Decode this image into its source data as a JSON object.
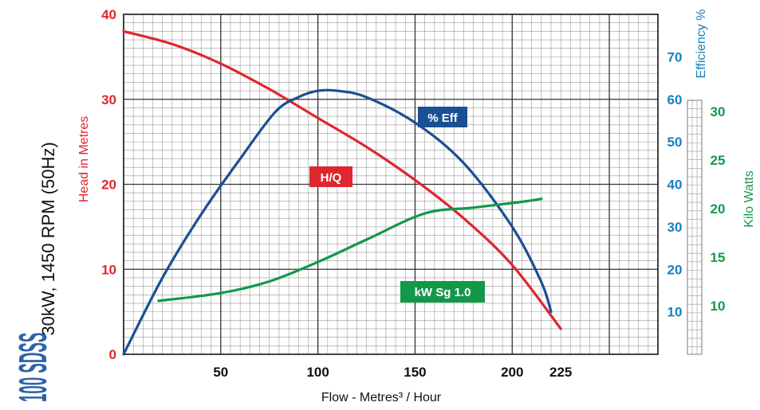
{
  "chart_data": {
    "type": "line",
    "side_title": "100 SDSS",
    "subtitle": "30kW, 1450 RPM (50Hz)",
    "xlabel": "Flow - Metres³ / Hour",
    "xlim": [
      0,
      275
    ],
    "x_ticks": [
      50,
      100,
      150,
      200,
      225
    ],
    "head_axis": {
      "label": "Head in Metres",
      "range": [
        0,
        40
      ],
      "ticks": [
        0,
        10,
        20,
        30,
        40
      ]
    },
    "efficiency_axis": {
      "label": "Efficiency %",
      "range": [
        0,
        80
      ],
      "ticks": [
        10,
        20,
        30,
        40,
        50,
        60,
        70
      ]
    },
    "kw_axis": {
      "label": "Kilo Watts",
      "range": [
        5,
        40
      ],
      "ticks": [
        10,
        15,
        20,
        25,
        30
      ]
    },
    "grid": true,
    "series": [
      {
        "name": "H/Q",
        "axis": "head",
        "color": "#e0262e",
        "x": [
          0,
          25,
          50,
          75,
          100,
          125,
          150,
          175,
          200,
          225
        ],
        "y": [
          38,
          36.5,
          34.2,
          31.2,
          27.8,
          24.4,
          20.5,
          16,
          10.5,
          3
        ]
      },
      {
        "name": "% Eff",
        "axis": "efficiency",
        "color": "#1a4f93",
        "x": [
          0,
          20,
          40,
          60,
          78,
          90,
          100,
          110,
          125,
          150,
          175,
          200,
          215,
          220
        ],
        "y": [
          0,
          18,
          33,
          46,
          57,
          60.5,
          62,
          62,
          60.5,
          54.5,
          45,
          30,
          17,
          10
        ]
      },
      {
        "name": "kW Sg 1.0",
        "axis": "kw",
        "color": "#13984a",
        "x": [
          18,
          50,
          75,
          100,
          125,
          155,
          180,
          205,
          215
        ],
        "y": [
          10.5,
          11.3,
          12.5,
          14.5,
          16.8,
          19.5,
          20.1,
          20.7,
          21
        ]
      }
    ],
    "labels": {
      "hq": "H/Q",
      "eff": "% Eff",
      "kw": "kW Sg 1.0"
    }
  }
}
